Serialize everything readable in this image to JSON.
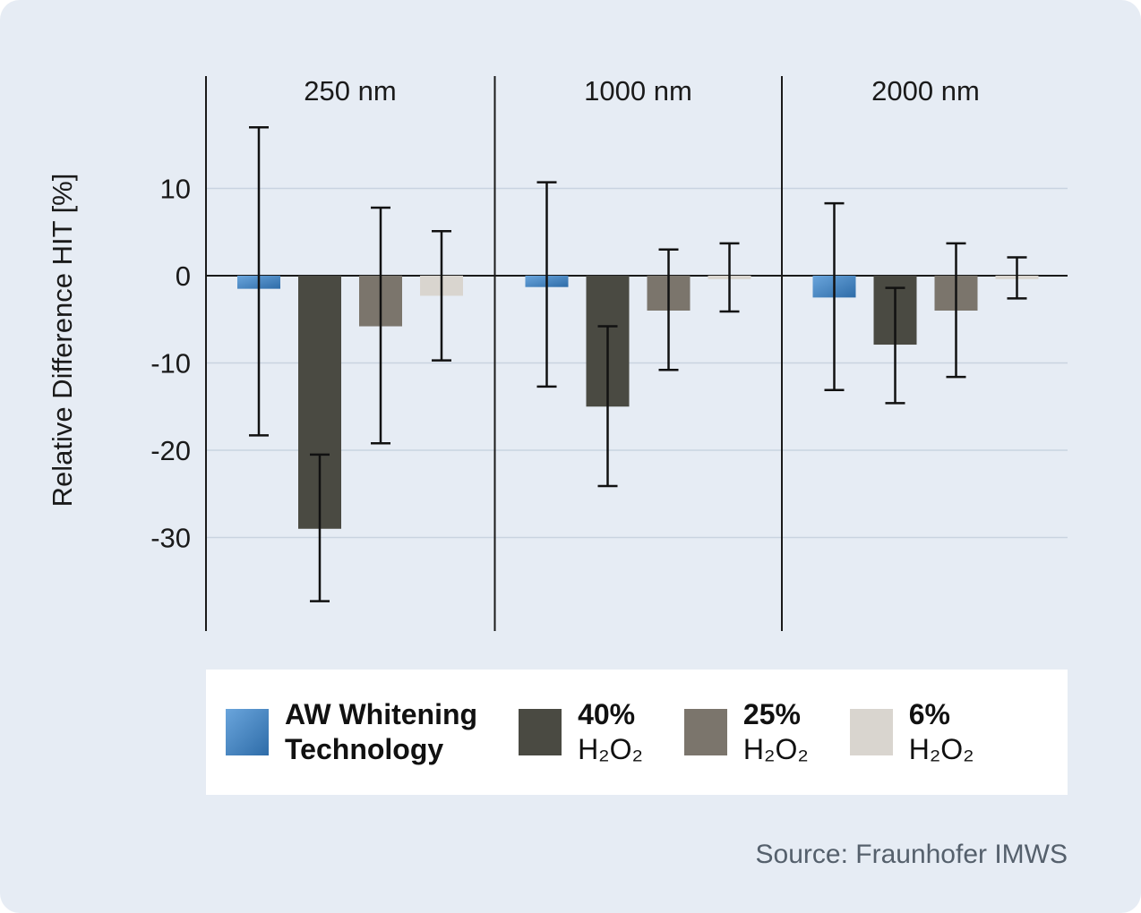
{
  "chart_data": {
    "type": "bar",
    "title": "",
    "ylabel": "Relative Difference HIT [%]",
    "ylim": [
      -40,
      20
    ],
    "yticks": [
      10,
      0,
      -10,
      -20,
      -30
    ],
    "grid": "horizontal",
    "legend_position": "bottom",
    "groups": [
      "250 nm",
      "1000 nm",
      "2000 nm"
    ],
    "series": [
      {
        "name": "AW Whitening Technology",
        "color": "blue-gradient",
        "values": [
          -1.5,
          -1.3,
          -2.5
        ],
        "err_high": [
          17.0,
          10.7,
          8.3
        ],
        "err_low": [
          -18.3,
          -12.7,
          -13.1
        ]
      },
      {
        "name": "40% H₂O₂",
        "color": "#4a4a42",
        "values": [
          -29.0,
          -15.0,
          -7.9
        ],
        "err_high": [
          -20.5,
          -5.8,
          -1.4
        ],
        "err_low": [
          -37.3,
          -24.1,
          -14.6
        ]
      },
      {
        "name": "25% H₂O₂",
        "color": "#7b756c",
        "values": [
          -5.8,
          -4.0,
          -4.0
        ],
        "err_high": [
          7.8,
          3.0,
          3.7
        ],
        "err_low": [
          -19.2,
          -10.8,
          -11.6
        ]
      },
      {
        "name": "6% H₂O₂",
        "color": "#d9d5cf",
        "values": [
          -2.3,
          -0.4,
          -0.4
        ],
        "err_high": [
          5.1,
          3.7,
          2.1
        ],
        "err_low": [
          -9.7,
          -4.1,
          -2.6
        ]
      }
    ],
    "source": "Source: Fraunhofer IMWS"
  },
  "legend": {
    "items": [
      {
        "line1": "AW Whitening",
        "line2": "Technology",
        "swatch": "blue"
      },
      {
        "line1": "40%",
        "line2": "H₂O₂",
        "swatch": "dark"
      },
      {
        "line1": "25%",
        "line2": "H₂O₂",
        "swatch": "medium"
      },
      {
        "line1": "6%",
        "line2": "H₂O₂",
        "swatch": "light"
      }
    ]
  }
}
